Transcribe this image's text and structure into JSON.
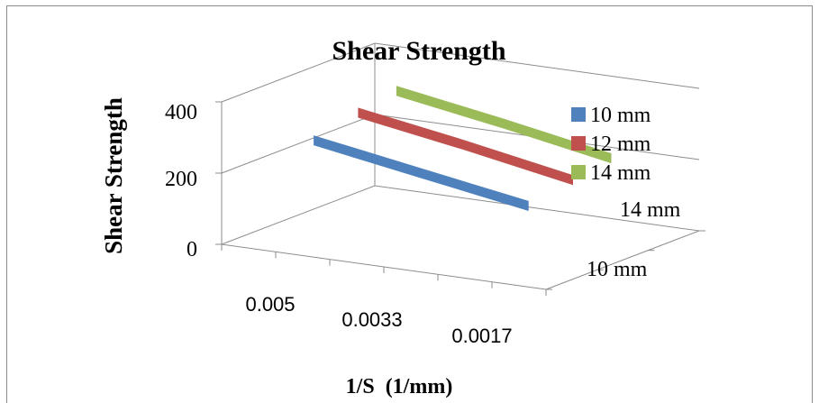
{
  "chart_data": {
    "type": "area",
    "title": "Shear Strength",
    "xlabel": "1/S  (1/mm)",
    "ylabel": "Shear Strength",
    "categories": [
      "0.005",
      "0.0033",
      "0.0017"
    ],
    "depth_labels": [
      "10 mm",
      "14 mm"
    ],
    "yticks": [
      "0",
      "200",
      "400"
    ],
    "ylim": [
      0,
      400
    ],
    "grid": true,
    "legend_position": "right",
    "series": [
      {
        "name": "10 mm",
        "color": "#4f81bd",
        "values": [
          300,
          250,
          200
        ]
      },
      {
        "name": "12 mm",
        "color": "#c0504d",
        "values": [
          330,
          280,
          225
        ]
      },
      {
        "name": "14 mm",
        "color": "#9bbb59",
        "values": [
          350,
          300,
          245
        ]
      }
    ]
  }
}
